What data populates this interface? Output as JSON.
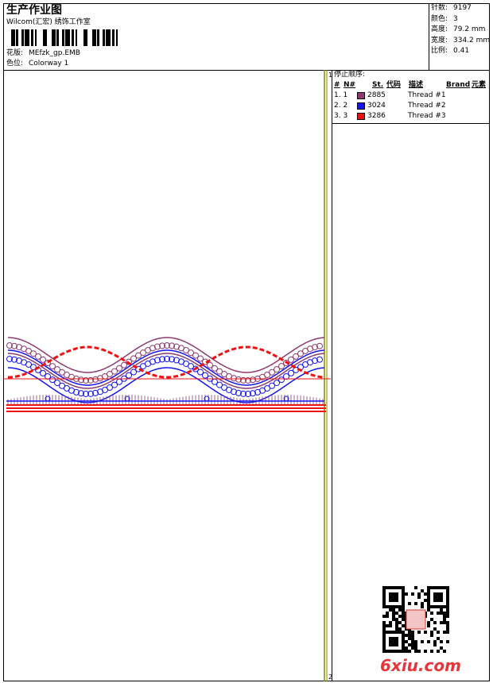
{
  "header": {
    "title": "生产作业图",
    "studio": "Wilcom(汇宏) 绣饰工作室",
    "design_label": "花版:",
    "design": "MEfzk_gp.EMB",
    "colorway_label": "色位:",
    "colorway": "Colorway 1"
  },
  "info": [
    {
      "label": "针数:",
      "value": "9197"
    },
    {
      "label": "颜色:",
      "value": "3"
    },
    {
      "label": "高度:",
      "value": "79.2 mm"
    },
    {
      "label": "宽度:",
      "value": "334.2 mm"
    },
    {
      "label": "比例:",
      "value": "0.41"
    }
  ],
  "stop_sequence": {
    "title": "停止顺序:",
    "columns": [
      "#",
      "N#",
      "St.",
      "代码",
      "描述",
      "Brand",
      "元素"
    ],
    "rows": [
      {
        "index": "1. 1",
        "color": "#8e3a6e",
        "code": "2885",
        "description": "Thread #1"
      },
      {
        "index": "2. 2",
        "color": "#1414f0",
        "code": "3024",
        "description": "Thread #2"
      },
      {
        "index": "3. 3",
        "color": "#f01010",
        "code": "3286",
        "description": "Thread #3"
      }
    ]
  },
  "ruler": {
    "start": "1",
    "end": "2"
  },
  "watermark": "6xiu.com"
}
